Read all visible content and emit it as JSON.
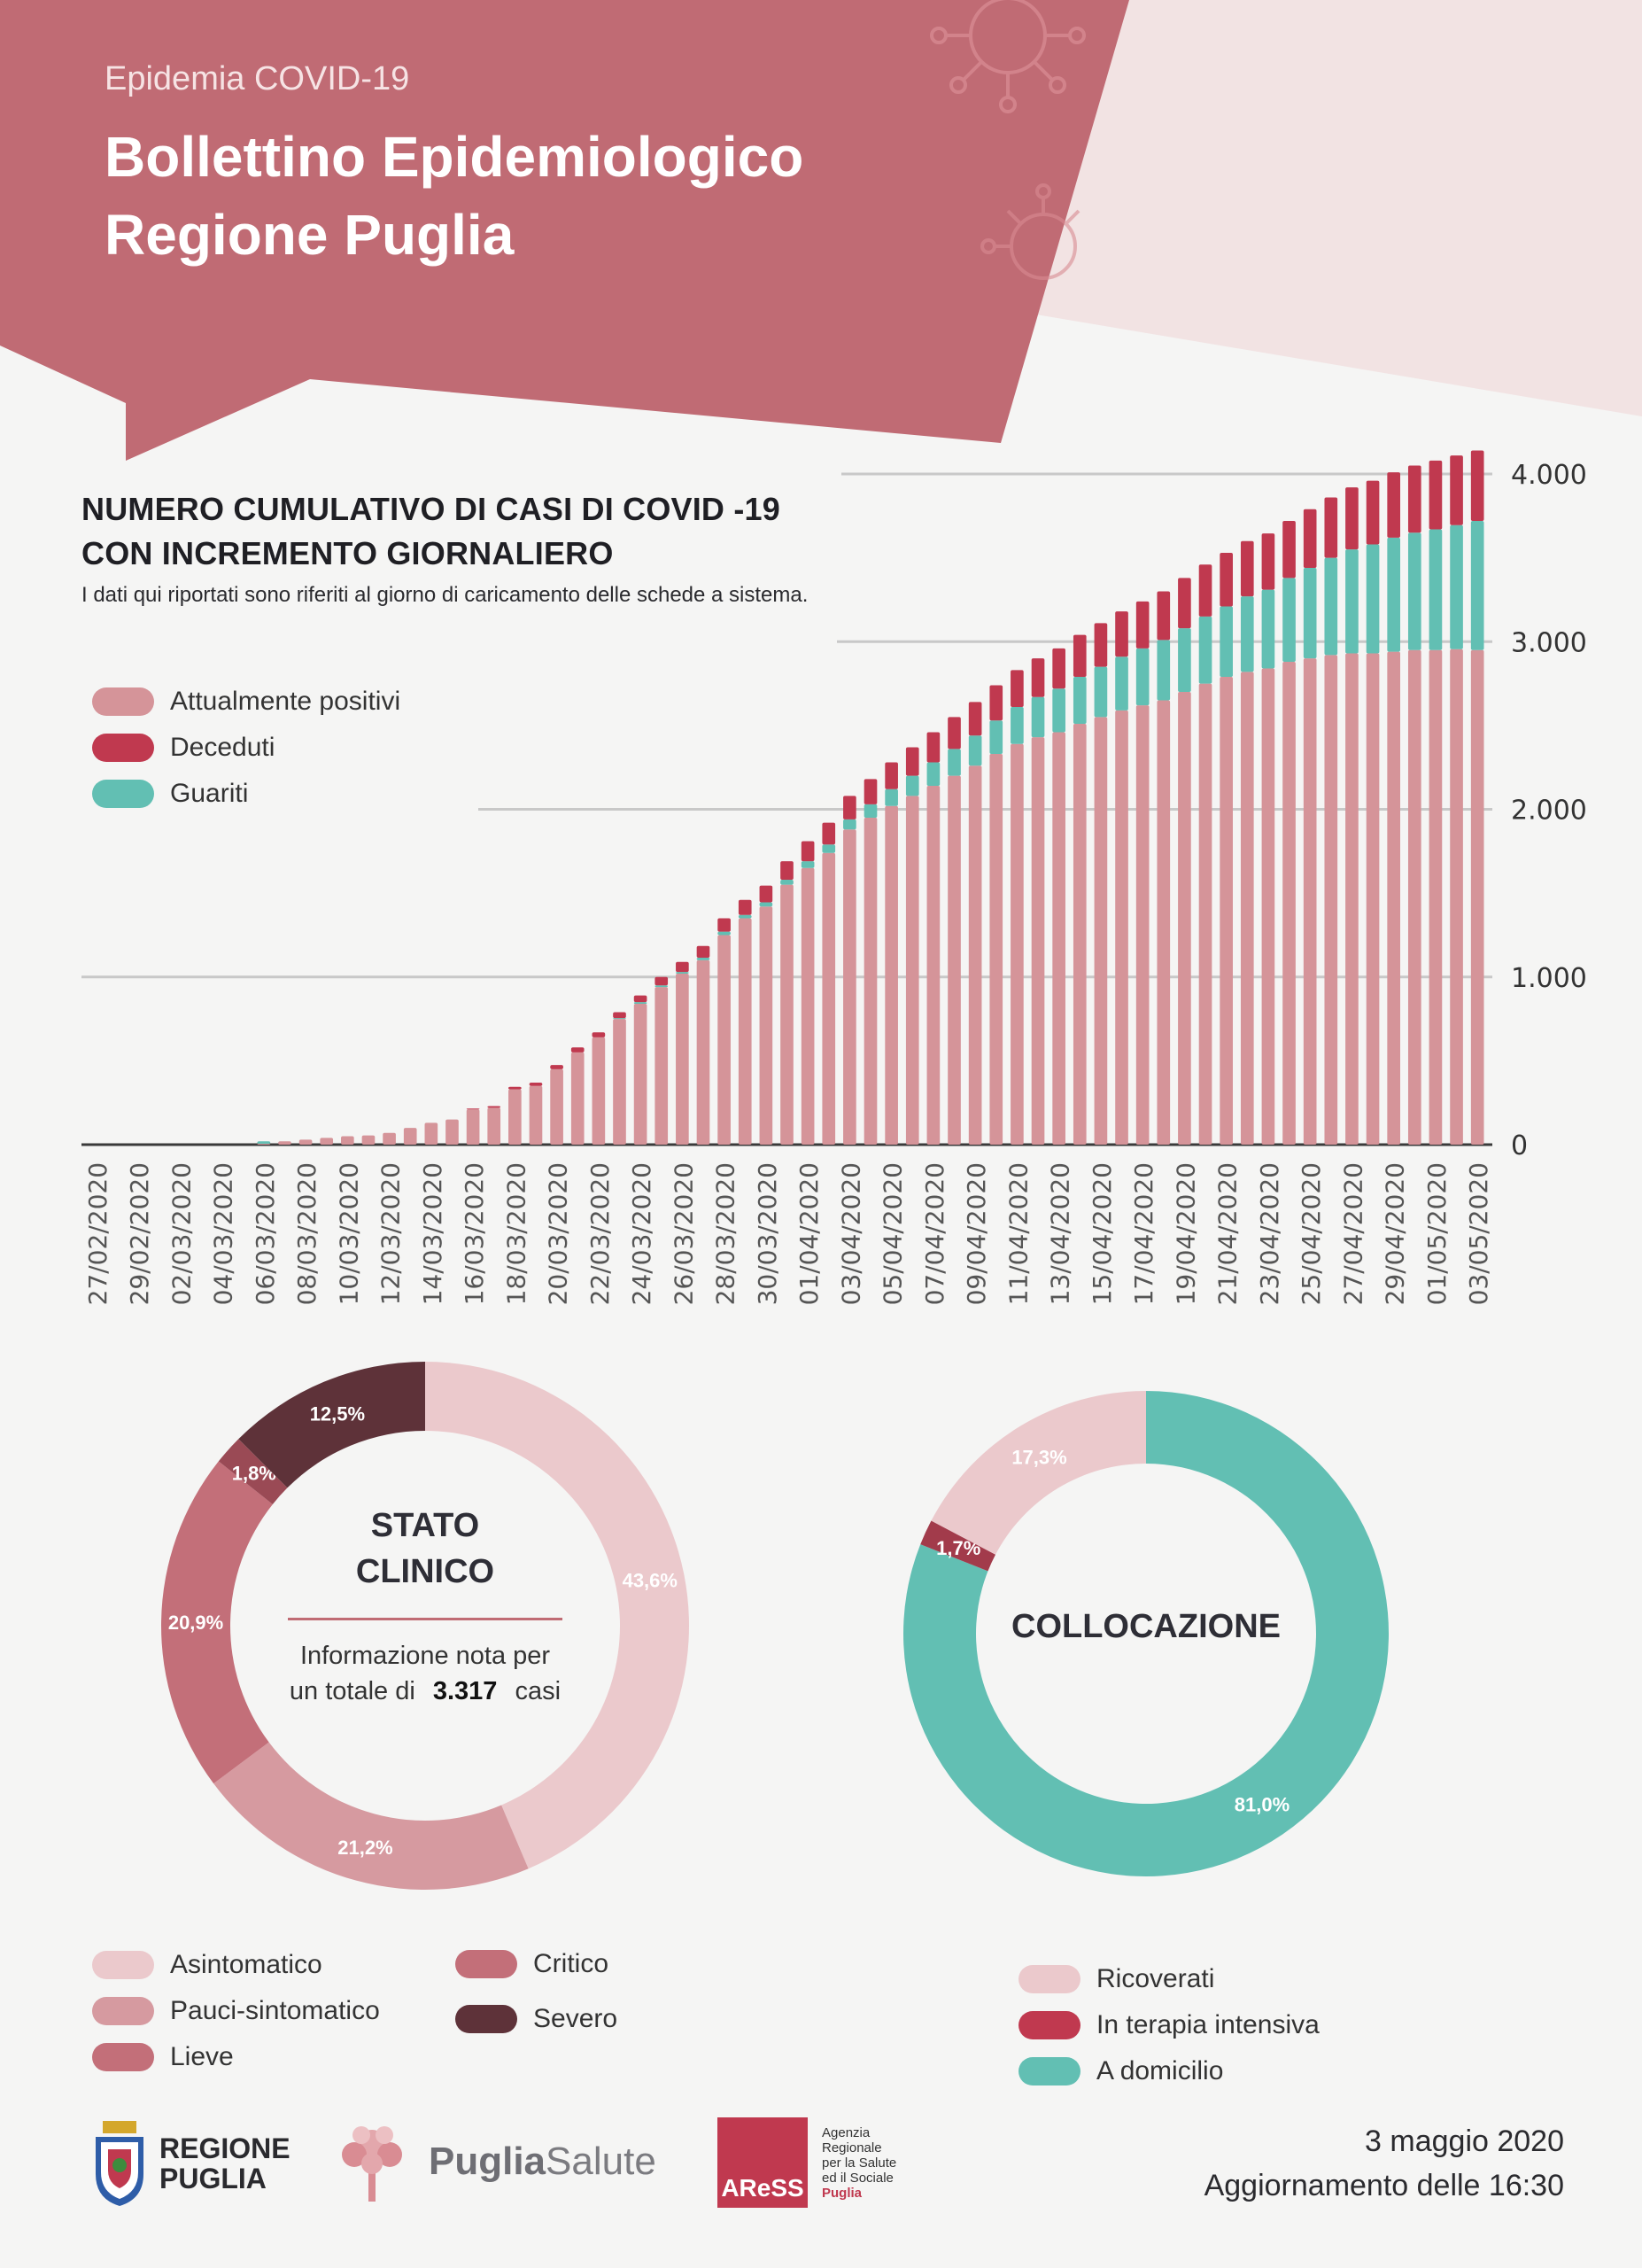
{
  "header": {
    "kicker": "Epidemia COVID-19",
    "title_line1": "Bollettino Epidemiologico",
    "title_line2": "Regione Puglia"
  },
  "colors": {
    "banner": "#c06b74",
    "banner_light": "#f2e3e3",
    "positivi": "#d59499",
    "deceduti": "#c0394f",
    "guariti": "#62bfb3",
    "asintomatico": "#ebc9cc",
    "pauci": "#d69aa0",
    "lieve": "#c36f79",
    "critico": "#c36f79",
    "severo": "#5e3239"
  },
  "chart": {
    "title_line1": "NUMERO CUMULATIVO DI CASI DI COVID -19",
    "title_line2": "CON INCREMENTO GIORNALIERO",
    "subtitle": "I dati qui riportati sono riferiti al giorno di caricamento delle schede a sistema.",
    "legend": [
      "Attualmente positivi",
      "Deceduti",
      "Guariti"
    ]
  },
  "chart_data": [
    {
      "type": "bar",
      "stacked": true,
      "title": "NUMERO CUMULATIVO DI CASI DI COVID -19 CON INCREMENTO GIORNALIERO",
      "ylim": [
        0,
        4000
      ],
      "y_ticks": [
        "0",
        "1.000",
        "2.000",
        "3.000",
        "4.000"
      ],
      "grid": true,
      "x_tick_labels": [
        "27/02/2020",
        "29/02/2020",
        "02/03/2020",
        "04/03/2020",
        "06/03/2020",
        "08/03/2020",
        "10/03/2020",
        "12/03/2020",
        "14/03/2020",
        "16/03/2020",
        "18/03/2020",
        "20/03/2020",
        "22/03/2020",
        "24/03/2020",
        "26/03/2020",
        "28/03/2020",
        "30/03/2020",
        "01/04/2020",
        "03/04/2020",
        "05/04/2020",
        "07/04/2020",
        "09/04/2020",
        "11/04/2020",
        "13/04/2020",
        "15/04/2020",
        "17/04/2020",
        "19/04/2020",
        "21/04/2020",
        "23/04/2020",
        "25/04/2020",
        "27/04/2020",
        "29/04/2020",
        "01/05/2020",
        "03/05/2020"
      ],
      "categories": [
        "27/02/2020",
        "28/02/2020",
        "29/02/2020",
        "01/03/2020",
        "02/03/2020",
        "03/03/2020",
        "04/03/2020",
        "05/03/2020",
        "06/03/2020",
        "07/03/2020",
        "08/03/2020",
        "09/03/2020",
        "10/03/2020",
        "11/03/2020",
        "12/03/2020",
        "13/03/2020",
        "14/03/2020",
        "15/03/2020",
        "16/03/2020",
        "17/03/2020",
        "18/03/2020",
        "19/03/2020",
        "20/03/2020",
        "21/03/2020",
        "22/03/2020",
        "23/03/2020",
        "24/03/2020",
        "25/03/2020",
        "26/03/2020",
        "27/03/2020",
        "28/03/2020",
        "29/03/2020",
        "30/03/2020",
        "31/03/2020",
        "01/04/2020",
        "02/04/2020",
        "03/04/2020",
        "04/04/2020",
        "05/04/2020",
        "06/04/2020",
        "07/04/2020",
        "08/04/2020",
        "09/04/2020",
        "10/04/2020",
        "11/04/2020",
        "12/04/2020",
        "13/04/2020",
        "14/04/2020",
        "15/04/2020",
        "16/04/2020",
        "17/04/2020",
        "18/04/2020",
        "19/04/2020",
        "20/04/2020",
        "21/04/2020",
        "22/04/2020",
        "23/04/2020",
        "24/04/2020",
        "25/04/2020",
        "26/04/2020",
        "27/04/2020",
        "28/04/2020",
        "29/04/2020",
        "30/04/2020",
        "01/05/2020",
        "02/05/2020",
        "03/05/2020"
      ],
      "series": [
        {
          "name": "Attualmente positivi",
          "color": "#d59499",
          "values": [
            0,
            0,
            0,
            0,
            0,
            0,
            0,
            0,
            5,
            20,
            30,
            40,
            50,
            55,
            70,
            100,
            130,
            150,
            210,
            220,
            330,
            350,
            450,
            550,
            640,
            750,
            840,
            940,
            1020,
            1100,
            1250,
            1350,
            1420,
            1550,
            1650,
            1740,
            1880,
            1950,
            2020,
            2080,
            2140,
            2200,
            2260,
            2330,
            2390,
            2430,
            2460,
            2510,
            2550,
            2590,
            2620,
            2650,
            2700,
            2750,
            2790,
            2820,
            2840,
            2880,
            2900,
            2920,
            2930,
            2930,
            2940,
            2950,
            2950,
            2955,
            2950
          ]
        },
        {
          "name": "Guariti",
          "color": "#62bfb3",
          "values": [
            0,
            0,
            0,
            0,
            0,
            0,
            0,
            0,
            15,
            0,
            0,
            0,
            0,
            0,
            0,
            0,
            0,
            0,
            0,
            0,
            0,
            0,
            0,
            0,
            0,
            5,
            10,
            10,
            10,
            15,
            20,
            20,
            25,
            30,
            40,
            50,
            60,
            80,
            100,
            120,
            140,
            160,
            180,
            200,
            220,
            240,
            260,
            280,
            300,
            320,
            340,
            360,
            380,
            400,
            420,
            450,
            470,
            500,
            540,
            580,
            620,
            650,
            680,
            700,
            720,
            740,
            770
          ]
        },
        {
          "name": "Deceduti",
          "color": "#c0394f",
          "values": [
            0,
            0,
            0,
            0,
            0,
            0,
            0,
            0,
            0,
            0,
            0,
            0,
            0,
            0,
            0,
            0,
            0,
            0,
            5,
            10,
            15,
            20,
            25,
            30,
            30,
            35,
            40,
            50,
            60,
            70,
            80,
            90,
            100,
            110,
            120,
            130,
            140,
            150,
            160,
            170,
            180,
            190,
            200,
            210,
            220,
            230,
            240,
            250,
            260,
            270,
            280,
            290,
            300,
            310,
            320,
            330,
            335,
            340,
            350,
            360,
            370,
            380,
            390,
            400,
            410,
            415,
            420
          ]
        }
      ],
      "legend_position": "top-left"
    },
    {
      "type": "pie",
      "title": "STATO CLINICO",
      "categories": [
        "Asintomatico",
        "Pauci-sintomatico",
        "Lieve",
        "Critico",
        "Severo"
      ],
      "values": [
        43.6,
        21.2,
        20.9,
        1.8,
        12.5
      ],
      "labels": [
        "43,6%",
        "21,2%",
        "20,9%",
        "1,8%",
        "12,5%"
      ],
      "colors": [
        "#ebc9cc",
        "#d69aa0",
        "#c36f79",
        "#9a4a55",
        "#5e3239"
      ]
    },
    {
      "type": "pie",
      "title": "COLLOCAZIONE",
      "categories": [
        "A domicilio",
        "In terapia intensiva",
        "Ricoverati"
      ],
      "values": [
        81.0,
        1.7,
        17.3
      ],
      "labels": [
        "81,0%",
        "1,7%",
        "17,3%"
      ],
      "colors": [
        "#62bfb3",
        "#a23b4b",
        "#ebc9cc"
      ]
    }
  ],
  "stato": {
    "title_line1": "STATO",
    "title_line2": "CLINICO",
    "note_line1": "Informazione nota per",
    "note_prefix": "un totale di",
    "total": "3.317",
    "note_suffix": "casi",
    "legend_left": [
      "Asintomatico",
      "Pauci-sintomatico",
      "Lieve"
    ],
    "legend_right": [
      "Critico",
      "Severo"
    ]
  },
  "collocazione": {
    "title": "COLLOCAZIONE",
    "legend": [
      "Ricoverati",
      "In terapia intensiva",
      "A domicilio"
    ]
  },
  "footer": {
    "regione_line1": "REGIONE",
    "regione_line2": "PUGLIA",
    "puglia_bold": "Puglia",
    "puglia_light": "Salute",
    "aress": "AReSS",
    "aress_desc": [
      "Agenzia",
      "Regionale",
      "per la Salute",
      "ed il Sociale",
      "Puglia"
    ],
    "date": "3 maggio 2020",
    "update": "Aggiornamento delle 16:30"
  }
}
